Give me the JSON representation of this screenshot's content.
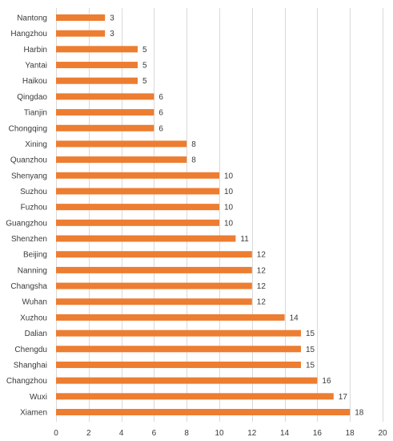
{
  "chart_data": {
    "type": "bar",
    "orientation": "horizontal",
    "title": "",
    "xlabel": "",
    "ylabel": "",
    "categories": [
      "Nantong",
      "Hangzhou",
      "Harbin",
      "Yantai",
      "Haikou",
      "Qingdao",
      "Tianjin",
      "Chongqing",
      "Xining",
      "Quanzhou",
      "Shenyang",
      "Suzhou",
      "Fuzhou",
      "Guangzhou",
      "Shenzhen",
      "Beijing",
      "Nanning",
      "Changsha",
      "Wuhan",
      "Xuzhou",
      "Dalian",
      "Chengdu",
      "Shanghai",
      "Changzhou",
      "Wuxi",
      "Xiamen"
    ],
    "values": [
      3,
      3,
      5,
      5,
      5,
      6,
      6,
      6,
      8,
      8,
      10,
      10,
      10,
      10,
      11,
      12,
      12,
      12,
      12,
      14,
      15,
      15,
      15,
      16,
      17,
      18
    ],
    "xlim": [
      0,
      20
    ],
    "xticks": [
      0,
      2,
      4,
      6,
      8,
      10,
      12,
      14,
      16,
      18,
      20
    ],
    "grid": "vertical",
    "legend": "none",
    "data_labels": true,
    "bar_color": "#ED7D31",
    "grid_color": "#D9D9D9",
    "text_color": "#3A3A3A"
  }
}
